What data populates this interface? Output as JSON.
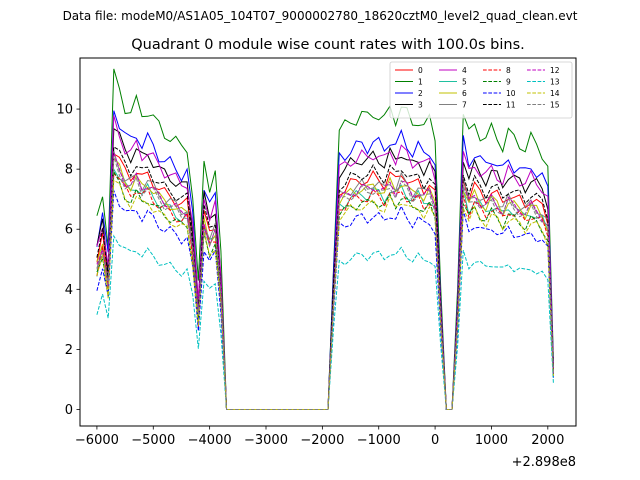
{
  "figure": {
    "suptitle": "Data file: modeM0/AS1A05_104T07_9000002780_18620cztM0_level2_quad_clean.evt"
  },
  "chart_data": {
    "type": "line",
    "title": "Quadrant 0 module wise count rates with 100.0s bins.",
    "xlabel": "",
    "ylabel": "",
    "offset_label": "+2.898e8",
    "xlim": [
      -6300,
      2500
    ],
    "ylim": [
      -0.55,
      11.7
    ],
    "xticks": [
      -6000,
      -5000,
      -4000,
      -3000,
      -2000,
      -1000,
      0,
      1000,
      2000
    ],
    "xtick_labels": [
      "−6000",
      "−5000",
      "−4000",
      "−3000",
      "−2000",
      "−1000",
      "0",
      "1000",
      "2000"
    ],
    "yticks": [
      0,
      2,
      4,
      6,
      8,
      10
    ],
    "ytick_labels": [
      "0",
      "2",
      "4",
      "6",
      "8",
      "10"
    ],
    "grid": false,
    "legend_location": "upper-right",
    "legend_columns": 4,
    "x": [
      -6000,
      -5900,
      -5800,
      -5700,
      -5600,
      -5500,
      -5400,
      -5300,
      -5200,
      -5100,
      -5000,
      -4900,
      -4800,
      -4700,
      -4600,
      -4500,
      -4400,
      -4300,
      -4200,
      -4100,
      -4000,
      -3900,
      -3800,
      -3700,
      -3600,
      -3500,
      -3400,
      -3300,
      -3200,
      -3100,
      -3000,
      -2900,
      -2800,
      -2700,
      -2600,
      -2500,
      -2400,
      -2300,
      -2200,
      -2100,
      -2000,
      -1900,
      -1800,
      -1700,
      -1600,
      -1500,
      -1400,
      -1300,
      -1200,
      -1100,
      -1000,
      -900,
      -800,
      -700,
      -600,
      -500,
      -400,
      -300,
      -200,
      -100,
      0,
      100,
      200,
      300,
      400,
      500,
      600,
      700,
      800,
      900,
      1000,
      1100,
      1200,
      1300,
      1400,
      1500,
      1600,
      1700,
      1800,
      1900,
      2000,
      2100
    ],
    "series": [
      {
        "name": "0",
        "color": "#ff0000",
        "dash": "solid",
        "base": 7.9
      },
      {
        "name": "1",
        "color": "#008000",
        "dash": "solid",
        "base": 10.1
      },
      {
        "name": "2",
        "color": "#0000ff",
        "dash": "solid",
        "base": 9.1
      },
      {
        "name": "3",
        "color": "#000000",
        "dash": "solid",
        "base": 8.6
      },
      {
        "name": "4",
        "color": "#c000c0",
        "dash": "solid",
        "base": 8.7
      },
      {
        "name": "5",
        "color": "#20c0a0",
        "dash": "solid",
        "base": 7.4
      },
      {
        "name": "6",
        "color": "#c0c000",
        "dash": "solid",
        "base": 7.6
      },
      {
        "name": "7",
        "color": "#808080",
        "dash": "solid",
        "base": 7.7
      },
      {
        "name": "8",
        "color": "#ff0000",
        "dash": "dashed",
        "base": 7.3
      },
      {
        "name": "9",
        "color": "#008000",
        "dash": "dashed",
        "base": 7.1
      },
      {
        "name": "10",
        "color": "#0000ff",
        "dash": "dashed",
        "base": 6.6
      },
      {
        "name": "11",
        "color": "#000000",
        "dash": "dashed",
        "base": 8.1
      },
      {
        "name": "12",
        "color": "#c000c0",
        "dash": "dashed",
        "base": 7.6
      },
      {
        "name": "13",
        "color": "#00c0c0",
        "dash": "dashed",
        "base": 5.3
      },
      {
        "name": "14",
        "color": "#c0c000",
        "dash": "dashed",
        "base": 7.0
      },
      {
        "name": "15",
        "color": "#808080",
        "dash": "dashed",
        "base": 7.5
      }
    ]
  }
}
